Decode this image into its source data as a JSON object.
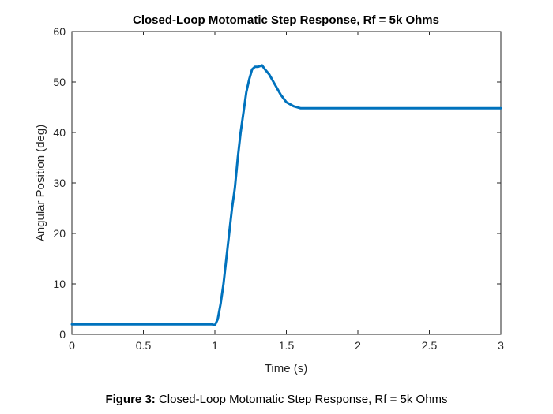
{
  "caption": {
    "label": "Figure 3:",
    "text": "Closed-Loop Motomatic Step Response, Rf = 5k Ohms"
  },
  "chart_data": {
    "type": "line",
    "title": "Closed-Loop Motomatic Step Response, Rf = 5k Ohms",
    "xlabel": "Time (s)",
    "ylabel": "Angular Position (deg)",
    "xlim": [
      0,
      3
    ],
    "ylim": [
      0,
      60
    ],
    "xticks": [
      0,
      0.5,
      1,
      1.5,
      2,
      2.5,
      3
    ],
    "xtick_labels": [
      "0",
      "0.5",
      "1",
      "1.5",
      "2",
      "2.5",
      "3"
    ],
    "yticks": [
      0,
      10,
      20,
      30,
      40,
      50,
      60
    ],
    "ytick_labels": [
      "0",
      "10",
      "20",
      "30",
      "40",
      "50",
      "60"
    ],
    "grid": false,
    "line_color": "#0072BD",
    "series": [
      {
        "x": [
          0,
          0.5,
          0.98,
          1.0,
          1.02,
          1.04,
          1.06,
          1.08,
          1.1,
          1.12,
          1.14,
          1.16,
          1.18,
          1.2,
          1.22,
          1.24,
          1.26,
          1.28,
          1.3,
          1.33,
          1.35,
          1.38,
          1.42,
          1.46,
          1.5,
          1.55,
          1.6,
          1.7,
          2.0,
          2.5,
          3.0
        ],
        "y": [
          2,
          2,
          2,
          1.8,
          3,
          6,
          10,
          15,
          20,
          25,
          29,
          35,
          40,
          44,
          48,
          50.5,
          52.5,
          53,
          53,
          53.3,
          52.5,
          51.5,
          49.5,
          47.5,
          46,
          45.2,
          44.8,
          44.8,
          44.8,
          44.8,
          44.8
        ]
      }
    ]
  }
}
